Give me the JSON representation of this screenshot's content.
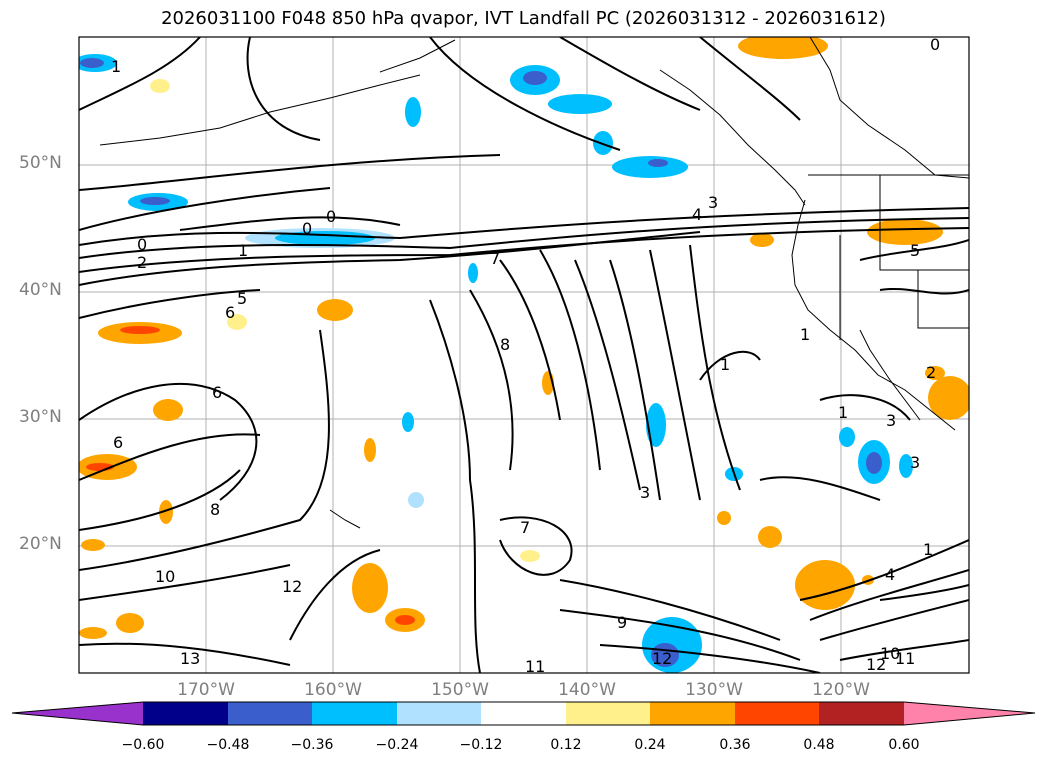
{
  "title": "2026031100 F048 850 hPa qvapor, IVT Landfall PC (2026031312 - 2026031612)",
  "map": {
    "lat_labels": [
      "50°N",
      "40°N",
      "30°N",
      "20°N"
    ],
    "lon_labels": [
      "170°W",
      "160°W",
      "150°W",
      "140°W",
      "130°W",
      "120°W"
    ],
    "contour_labels": [
      "0",
      "0",
      "0",
      "0",
      "1",
      "1",
      "1",
      "1",
      "1",
      "1",
      "2",
      "2",
      "3",
      "3",
      "3",
      "3",
      "4",
      "4",
      "5",
      "5",
      "6",
      "6",
      "6",
      "7",
      "7",
      "8",
      "8",
      "9",
      "10",
      "10",
      "11",
      "11",
      "12",
      "12",
      "12",
      "13"
    ]
  },
  "colorbar": {
    "colors": [
      "#9932cc",
      "#00008b",
      "#3a5fcd",
      "#00bfff",
      "#b0e2ff",
      "#ffffff",
      "#fff08c",
      "#ffa500",
      "#ff4500",
      "#b22222",
      "#ff82ab"
    ],
    "tick_labels": [
      "−0.60",
      "−0.48",
      "−0.36",
      "−0.24",
      "−0.12",
      "0.12",
      "0.24",
      "0.36",
      "0.48",
      "0.60"
    ]
  }
}
